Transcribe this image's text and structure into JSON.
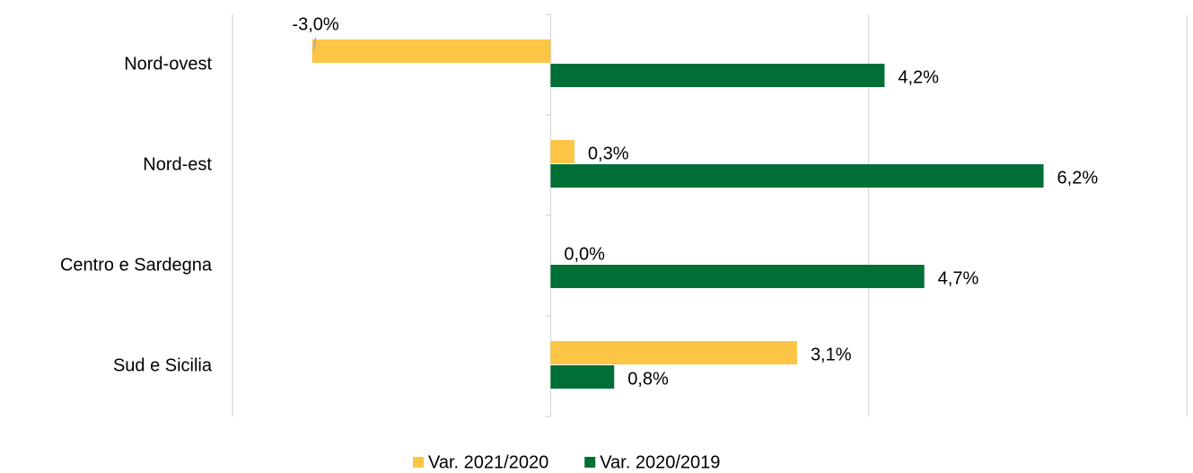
{
  "chart_data": {
    "type": "hbar",
    "categories": [
      "Nord-ovest",
      "Nord-est",
      "Centro e Sardegna",
      "Sud e Sicilia"
    ],
    "series": [
      {
        "name": "Var. 2021/2020",
        "color": "#fcc545",
        "values": [
          -3.0,
          0.3,
          0.0,
          3.1
        ],
        "value_labels": [
          "-3,0%",
          "0,3%",
          "0,0%",
          "3,1%"
        ]
      },
      {
        "name": "Var. 2020/2019",
        "color": "#006f35",
        "values": [
          4.2,
          6.2,
          4.7,
          0.8
        ],
        "value_labels": [
          "4,2%",
          "6,2%",
          "4,7%",
          "0,8%"
        ]
      }
    ],
    "xlim": [
      -4,
      8
    ],
    "xticks": [
      -4,
      0,
      4,
      8
    ],
    "grid": true,
    "legend": "bottom"
  }
}
